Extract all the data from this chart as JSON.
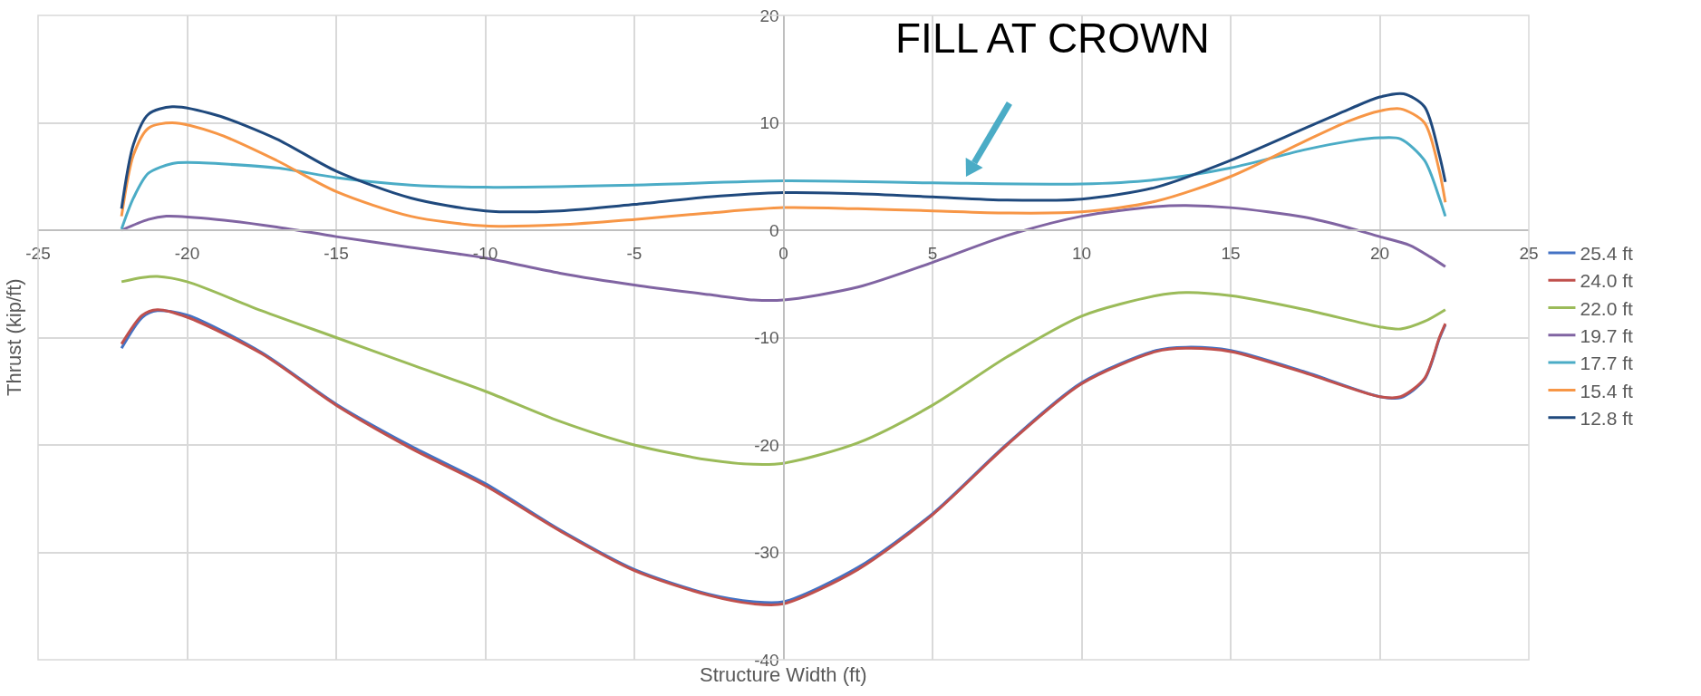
{
  "chart_data": {
    "type": "line",
    "xlabel": "Structure Width (ft)",
    "ylabel": "Thrust (kip/ft)",
    "xlim": [
      -25,
      25
    ],
    "xticks": [
      -25,
      -20,
      -15,
      -10,
      -5,
      0,
      5,
      10,
      15,
      20,
      25
    ],
    "ylim": [
      -40,
      20
    ],
    "yticks": [
      -40,
      -30,
      -20,
      -10,
      0,
      10,
      20
    ],
    "grid": true,
    "legend": "right",
    "marker": "none",
    "line_style": "solid",
    "annotations": [
      {
        "text": "FILL AT CROWN",
        "x": 6,
        "y": 4.4
      }
    ],
    "series": [
      {
        "name": "25.4 ft",
        "color": "#4472c4",
        "x": [
          -22.2,
          -21.5,
          -21,
          -20,
          -17.5,
          -15,
          -12.5,
          -10,
          -7.5,
          -5,
          -2.5,
          -1,
          0,
          2.5,
          5,
          7.5,
          10,
          12.5,
          13.5,
          15,
          17.5,
          20,
          20.7,
          21.5,
          22,
          22.2
        ],
        "values": [
          -11,
          -8.1,
          -7.5,
          -7.9,
          -11.4,
          -16.2,
          -20.1,
          -23.6,
          -27.9,
          -31.6,
          -33.9,
          -34.6,
          -34.6,
          -31.4,
          -26.4,
          -19.9,
          -14.2,
          -11.2,
          -10.9,
          -11.2,
          -13.2,
          -15.5,
          -15.6,
          -13.9,
          -10.1,
          -8.8
        ]
      },
      {
        "name": "24.0 ft",
        "color": "#c0504d",
        "x": [
          -22.2,
          -21.5,
          -21,
          -20,
          -17.5,
          -15,
          -12.5,
          -10,
          -7.5,
          -5,
          -2.5,
          -1,
          0,
          2.5,
          5,
          7.5,
          10,
          12.5,
          13.5,
          15,
          17.5,
          20,
          20.7,
          21.5,
          22,
          22.2
        ],
        "values": [
          -10.6,
          -7.9,
          -7.4,
          -8.1,
          -11.5,
          -16.3,
          -20.3,
          -23.8,
          -28,
          -31.7,
          -34,
          -34.8,
          -34.8,
          -31.6,
          -26.5,
          -20,
          -14.3,
          -11.3,
          -11,
          -11.3,
          -13.3,
          -15.5,
          -15.5,
          -13.8,
          -10,
          -8.7
        ]
      },
      {
        "name": "22.0 ft",
        "color": "#9bbb59",
        "x": [
          -22.2,
          -21.5,
          -21,
          -20,
          -17.5,
          -15,
          -12.5,
          -10,
          -7.5,
          -5,
          -2.5,
          -1,
          0,
          2.5,
          5,
          7.5,
          10,
          12.5,
          13.5,
          15,
          17.5,
          20,
          20.7,
          21.5,
          22.2
        ],
        "values": [
          -4.8,
          -4.4,
          -4.3,
          -4.8,
          -7.5,
          -10,
          -12.5,
          -15,
          -17.8,
          -20,
          -21.4,
          -21.8,
          -21.7,
          -19.8,
          -16.3,
          -11.8,
          -8,
          -6.1,
          -5.8,
          -6.1,
          -7.4,
          -9,
          -9.2,
          -8.5,
          -7.4
        ]
      },
      {
        "name": "19.7 ft",
        "color": "#8064a2",
        "x": [
          -22.2,
          -21.3,
          -20.7,
          -19,
          -17,
          -15,
          -12.5,
          -10,
          -7.5,
          -5,
          -2.5,
          -1,
          0,
          2.5,
          5,
          7.5,
          10,
          12.5,
          13.5,
          15,
          17.5,
          19,
          20,
          21,
          21.7,
          22.2
        ],
        "values": [
          0,
          1,
          1.3,
          1,
          0.3,
          -0.6,
          -1.6,
          -2.6,
          -4,
          -5.1,
          -6,
          -6.5,
          -6.5,
          -5.3,
          -3,
          -0.5,
          1.3,
          2.2,
          2.3,
          2.1,
          1.2,
          0.2,
          -0.6,
          -1.4,
          -2.5,
          -3.4
        ]
      },
      {
        "name": "17.7 ft",
        "color": "#4bacc6",
        "x": [
          -22.2,
          -21.8,
          -21.3,
          -20.5,
          -20,
          -17,
          -15,
          -12.5,
          -10,
          -5,
          0,
          5,
          10,
          12.5,
          15,
          17.5,
          19,
          20,
          20.7,
          21.5,
          22,
          22.2
        ],
        "values": [
          0.1,
          3,
          5.3,
          6.2,
          6.3,
          5.8,
          4.9,
          4.2,
          4,
          4.2,
          4.6,
          4.4,
          4.3,
          4.7,
          5.8,
          7.5,
          8.3,
          8.6,
          8.5,
          6.5,
          3,
          1.3
        ]
      },
      {
        "name": "15.4 ft",
        "color": "#f79646",
        "x": [
          -22.2,
          -21.8,
          -21.3,
          -20.5,
          -19,
          -17,
          -15,
          -12.5,
          -10,
          -7.5,
          -5,
          -2.5,
          0,
          2.5,
          5,
          7.5,
          10,
          12.5,
          15,
          17.5,
          19,
          20,
          20.7,
          21.5,
          22,
          22.2
        ],
        "values": [
          1.3,
          7,
          9.5,
          10,
          9,
          6.5,
          3.6,
          1.3,
          0.4,
          0.5,
          1,
          1.6,
          2.1,
          2,
          1.8,
          1.6,
          1.7,
          2.7,
          5,
          8.3,
          10.2,
          11.1,
          11.3,
          10,
          5.5,
          2.6
        ]
      },
      {
        "name": "12.8 ft",
        "color": "#1f497d",
        "x": [
          -22.2,
          -21.8,
          -21.3,
          -20.5,
          -19,
          -17,
          -15,
          -12.5,
          -10,
          -7.5,
          -5,
          -2.5,
          0,
          2.5,
          5,
          7.5,
          10,
          12.5,
          15,
          17.5,
          19,
          20,
          20.8,
          21.5,
          22,
          22.2
        ],
        "values": [
          2,
          8,
          10.8,
          11.5,
          10.7,
          8.5,
          5.5,
          3,
          1.8,
          1.8,
          2.4,
          3.1,
          3.5,
          3.4,
          3.1,
          2.8,
          2.9,
          4,
          6.5,
          9.5,
          11.3,
          12.4,
          12.7,
          11.5,
          7,
          4.5
        ]
      }
    ]
  }
}
